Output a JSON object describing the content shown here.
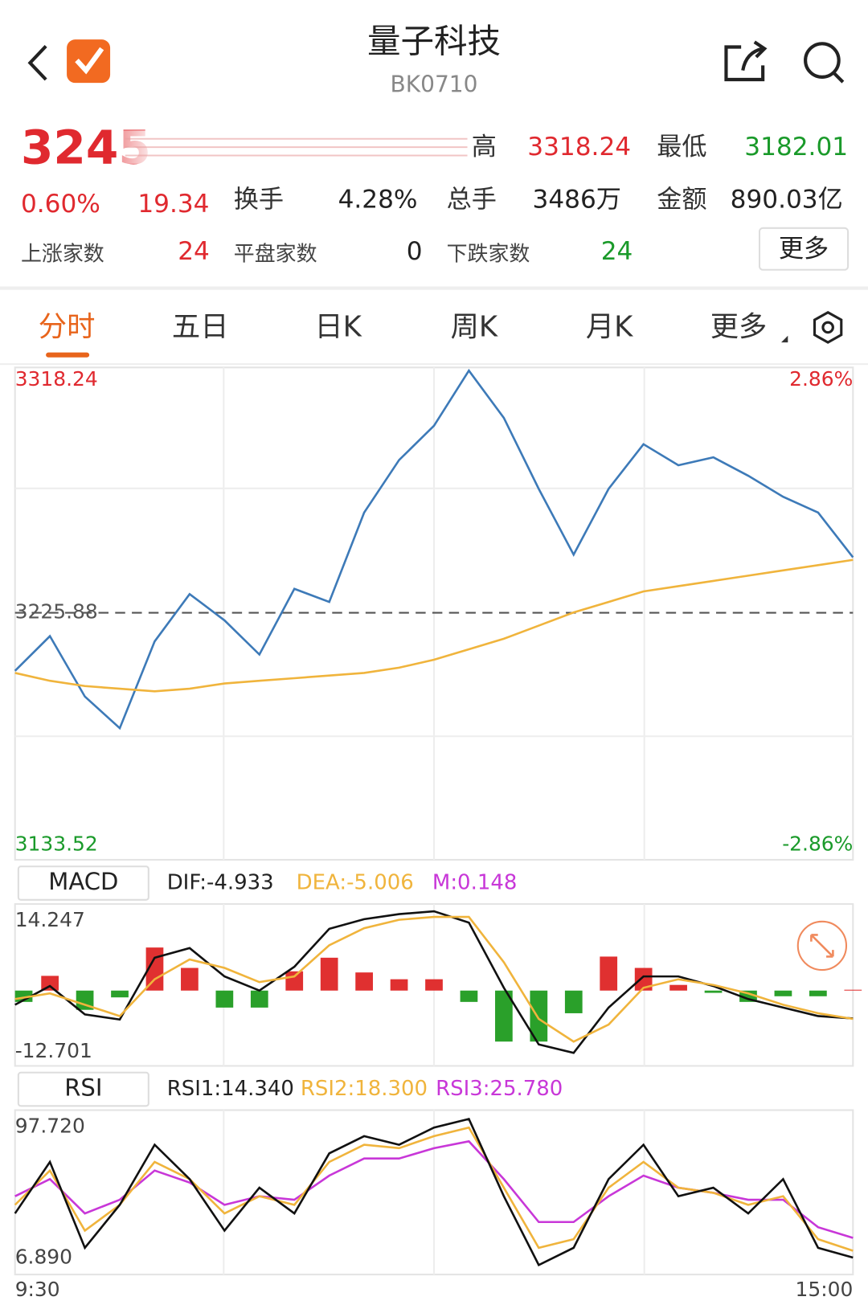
{
  "header": {
    "title": "量子科技",
    "code": "BK0710"
  },
  "quote": {
    "price": "3245",
    "high_label": "高",
    "high": "3318.24",
    "low_label": "最低",
    "low": "3182.01",
    "change_pct": "0.60%",
    "change": "19.34",
    "turnover_label": "换手",
    "turnover": "4.28%",
    "volume_label": "总手",
    "volume": "3486万",
    "amount_label": "金额",
    "amount": "890.03亿",
    "up_label": "上涨家数",
    "up": "24",
    "flat_label": "平盘家数",
    "flat": "0",
    "down_label": "下跌家数",
    "down": "24",
    "more": "更多"
  },
  "tabs": [
    "分时",
    "五日",
    "日K",
    "周K",
    "月K",
    "更多"
  ],
  "price_chart": {
    "ylim": [
      3133.52,
      3318.24
    ],
    "prev_close": 3225.88,
    "pct_top": "2.86%",
    "pct_bottom": "-2.86%",
    "series": [
      {
        "color": "#3d7ab8",
        "values": [
          3203.8,
          3217,
          3194,
          3182,
          3215,
          3233,
          3223,
          3210,
          3235,
          3230,
          3264,
          3284,
          3297,
          3318,
          3300,
          3273,
          3248,
          3273,
          3290,
          3282,
          3285,
          3278,
          3270,
          3264,
          3247
        ]
      },
      {
        "color": "#f0b43c",
        "values": [
          3203,
          3200,
          3198,
          3197,
          3196,
          3197,
          3199,
          3200,
          3201,
          3202,
          3203,
          3205,
          3208,
          3212,
          3216,
          3221,
          3226,
          3230,
          3234,
          3236,
          3238,
          3240,
          3242,
          3244,
          3246
        ]
      }
    ]
  },
  "macd": {
    "label": "MACD",
    "dif_text": "DIF:-4.933",
    "dea_text": "DEA:-5.006",
    "m_text": "M:0.148",
    "ylim": [
      -12.701,
      14.247
    ],
    "dif": {
      "color": "#111111",
      "values": [
        -2.5,
        0.8,
        -4.2,
        -5.1,
        5.8,
        7.5,
        2.5,
        0,
        4.2,
        10.9,
        12.6,
        13.5,
        14.0,
        12.0,
        0.5,
        -9.5,
        -11.0,
        -3.0,
        2.5,
        2.5,
        0.8,
        -1.5,
        -3.0,
        -4.5,
        -4.933
      ]
    },
    "dea": {
      "color": "#f0b43c",
      "values": [
        -1.5,
        -0.5,
        -2.5,
        -4.5,
        2.0,
        5.5,
        4.0,
        1.5,
        2.5,
        8.0,
        11.0,
        12.5,
        13.0,
        13.0,
        5.0,
        -5.0,
        -9.0,
        -6.0,
        0.5,
        2.0,
        1.0,
        -0.5,
        -2.5,
        -4.0,
        -5.006
      ]
    },
    "hist": {
      "up_color": "#e03030",
      "down_color": "#2aa02a",
      "values": [
        -2,
        2.6,
        -3.4,
        -1.2,
        7.6,
        4,
        -3,
        -3,
        3.4,
        5.8,
        3.2,
        2,
        2,
        -2,
        -9,
        -9,
        -4,
        6,
        4,
        1,
        -0.4,
        -2,
        -1,
        -1,
        0.148
      ]
    }
  },
  "rsi": {
    "label": "RSI",
    "texts": [
      "RSI1:14.340",
      "RSI2:18.300",
      "RSI3:25.780"
    ],
    "ylim": [
      {
        "value": 6.89,
        "label": "6.890"
      },
      {
        "value": 97.72,
        "label": "97.720"
      }
    ],
    "series": [
      {
        "color": "#111111",
        "values": [
          40,
          70,
          20,
          45,
          80,
          60,
          30,
          55,
          40,
          75,
          85,
          80,
          90,
          95,
          50,
          10,
          20,
          60,
          80,
          50,
          55,
          40,
          60,
          20,
          14.34
        ]
      },
      {
        "color": "#f0b43c",
        "values": [
          45,
          65,
          30,
          45,
          70,
          60,
          40,
          50,
          45,
          70,
          80,
          78,
          85,
          90,
          55,
          20,
          25,
          55,
          70,
          55,
          52,
          45,
          50,
          25,
          18.3
        ]
      },
      {
        "color": "#c837d8",
        "values": [
          50,
          60,
          40,
          48,
          65,
          58,
          45,
          50,
          48,
          62,
          72,
          72,
          78,
          82,
          60,
          35,
          35,
          50,
          62,
          55,
          52,
          48,
          48,
          32,
          25.78
        ]
      }
    ]
  },
  "time_axis": [
    "9:30",
    "15:00"
  ]
}
